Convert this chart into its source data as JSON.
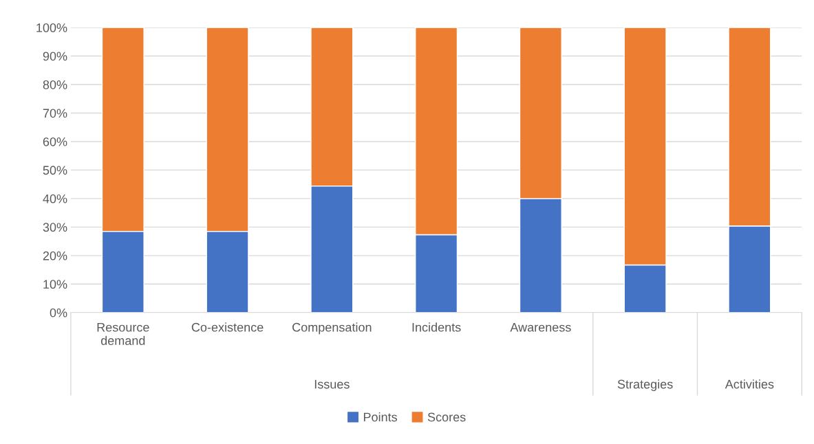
{
  "chart_data": {
    "type": "bar",
    "stacked": true,
    "categories": [
      "Resource demand",
      "Co-existence",
      "Compensation",
      "Incidents",
      "Awareness",
      null,
      null
    ],
    "annotations": [
      "Issues",
      "Strategies",
      "Activities"
    ],
    "series": [
      {
        "name": "Points",
        "color": "#4472c4",
        "values": [
          28.5,
          28.5,
          44.4,
          27.3,
          40,
          16.7,
          30.4
        ]
      },
      {
        "name": "Scores",
        "color": "#ed7d31",
        "values": [
          71.5,
          71.5,
          55.6,
          72.7,
          60,
          83.3,
          69.6
        ]
      }
    ],
    "ylim": [
      0,
      100
    ],
    "yticks": [
      {
        "value": 0,
        "label": "0%"
      },
      {
        "value": 10,
        "label": "10%"
      },
      {
        "value": 20,
        "label": "20%"
      },
      {
        "value": 30,
        "label": "30%"
      },
      {
        "value": 40,
        "label": "40%"
      },
      {
        "value": 50,
        "label": "50%"
      },
      {
        "value": 60,
        "label": "60%"
      },
      {
        "value": 70,
        "label": "70%"
      },
      {
        "value": 80,
        "label": "80%"
      },
      {
        "value": 90,
        "label": "90%"
      },
      {
        "value": 100,
        "label": "100%"
      }
    ],
    "grid": "y",
    "legend": "bottom"
  }
}
